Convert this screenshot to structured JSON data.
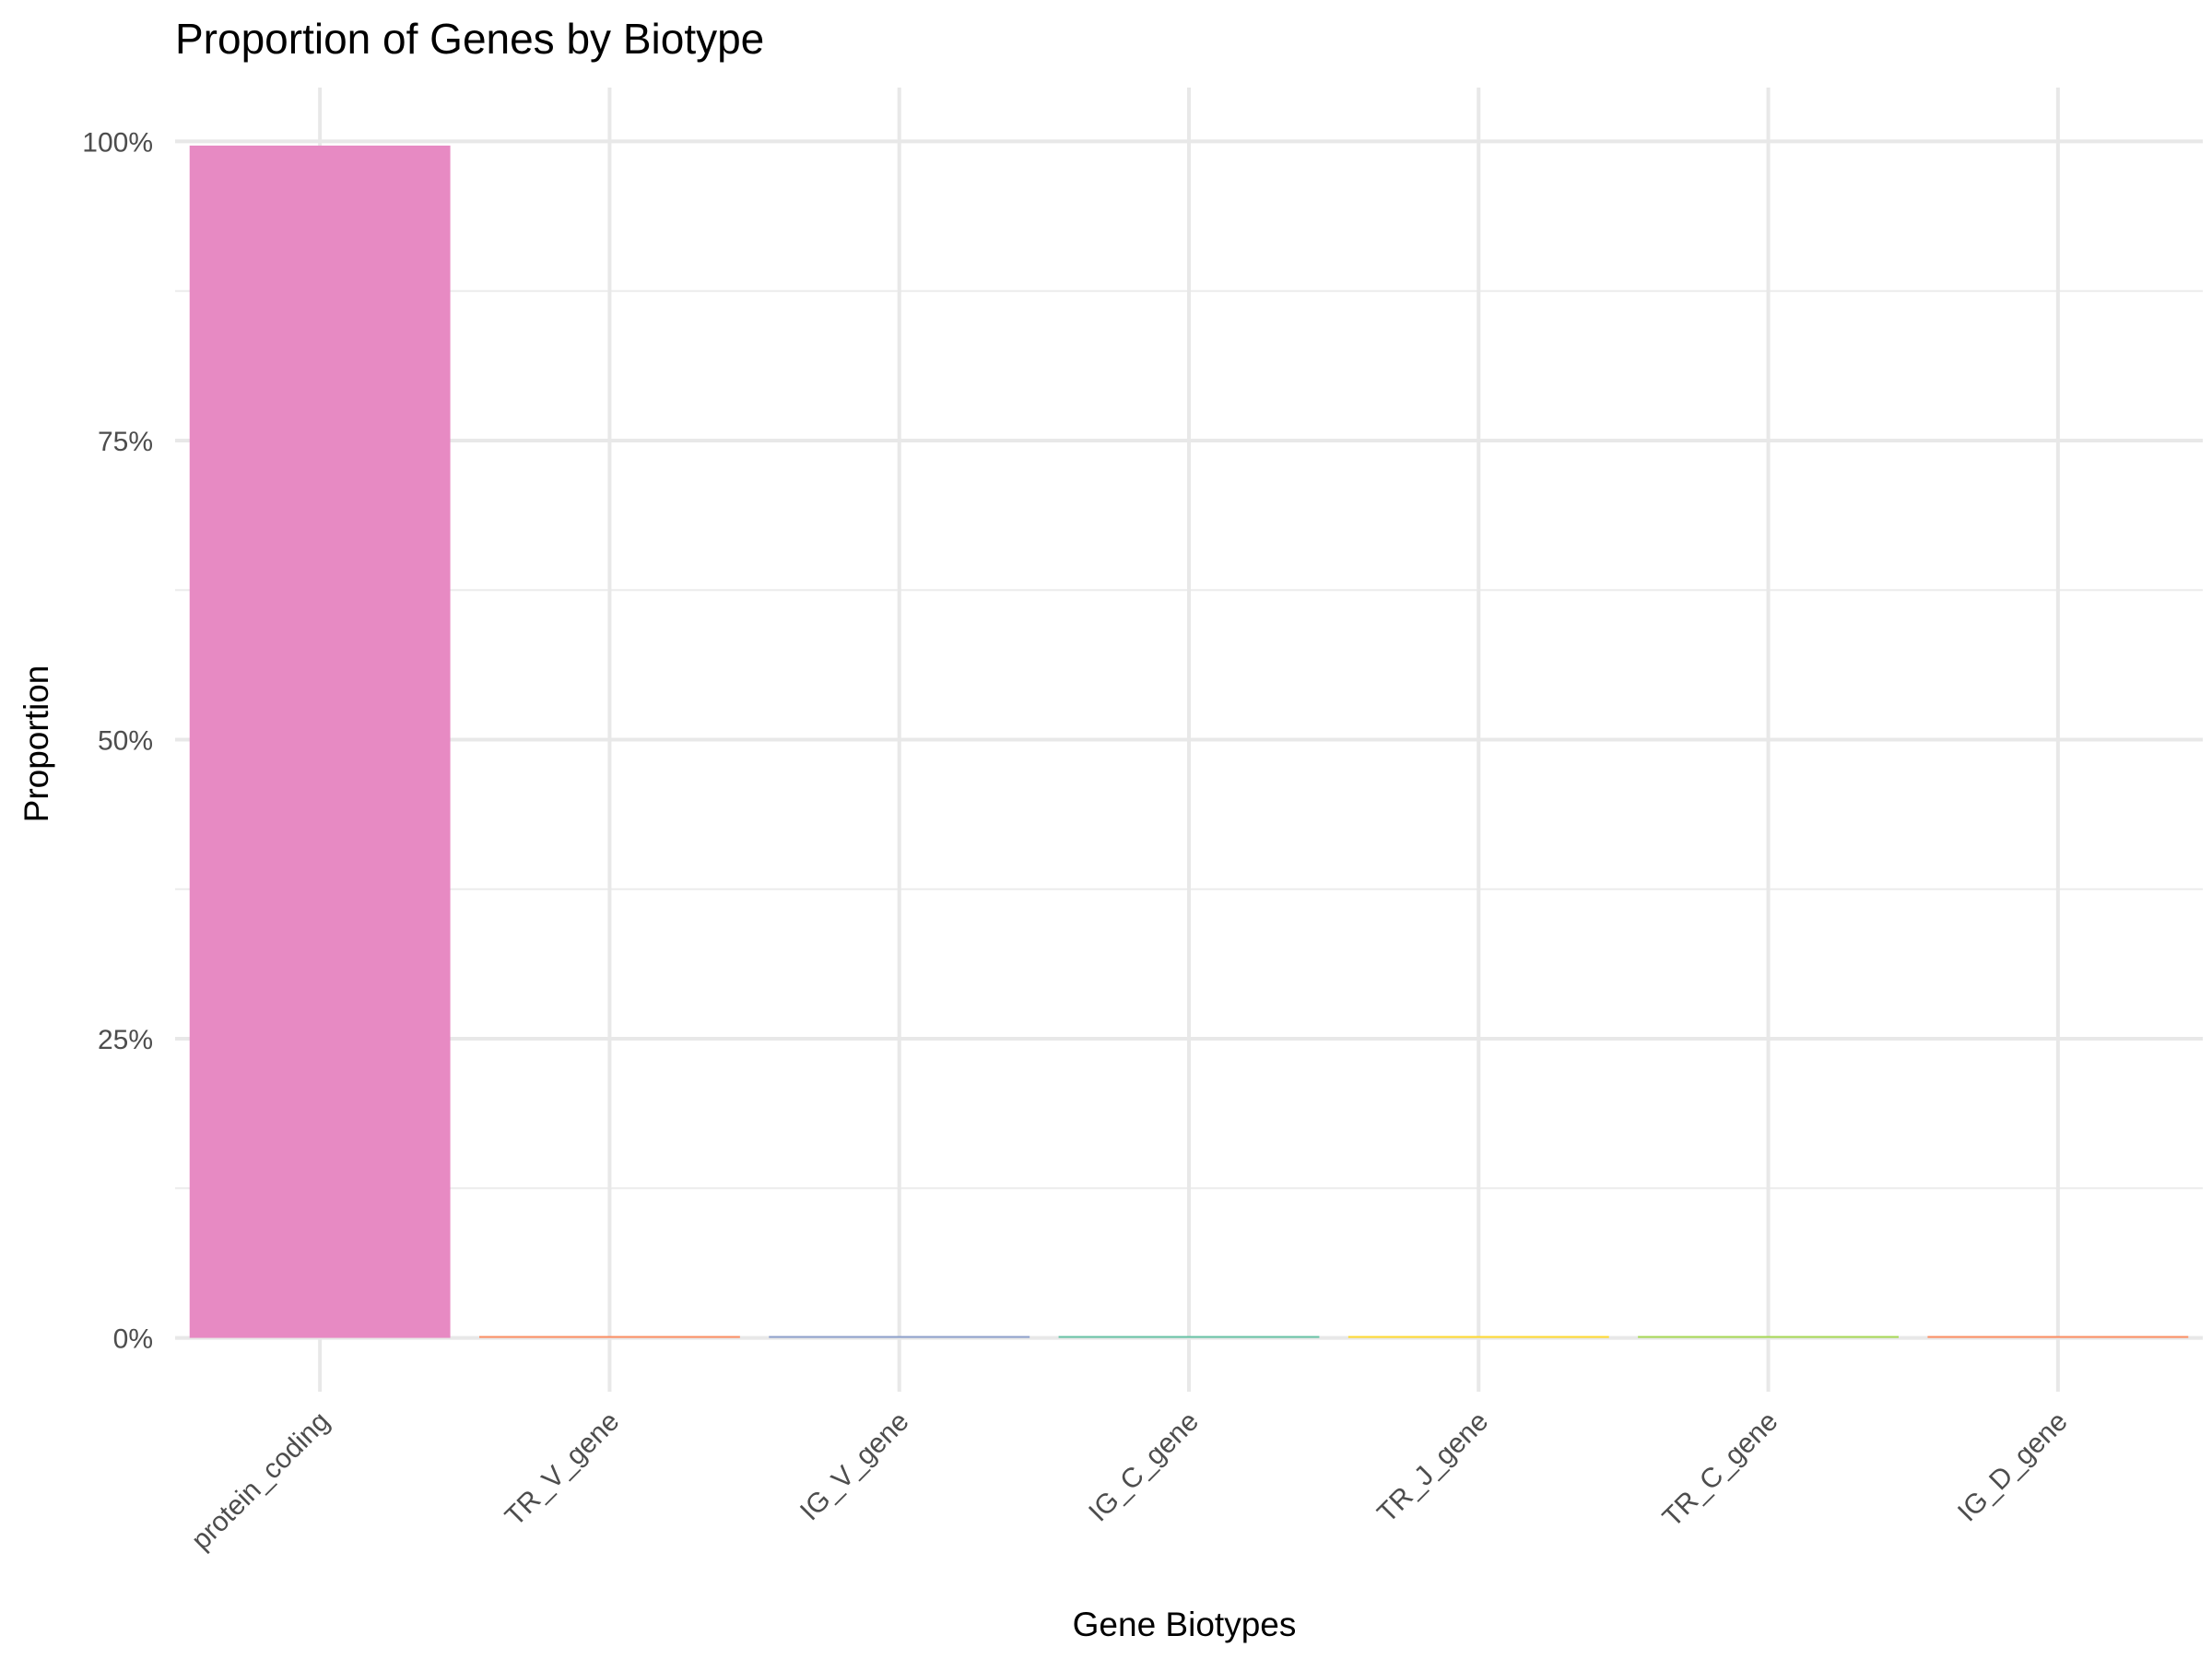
{
  "chart_data": {
    "type": "bar",
    "title": "Proportion of Genes by Biotype",
    "xlabel": "Gene Biotypes",
    "ylabel": "Proportion",
    "categories": [
      "protein_coding",
      "TR_V_gene",
      "IG_V_gene",
      "IG_C_gene",
      "TR_J_gene",
      "TR_C_gene",
      "IG_D_gene"
    ],
    "values": [
      0.9965,
      0.0015,
      0.0008,
      0.0005,
      0.0004,
      0.0002,
      0.0001
    ],
    "colors": [
      "#E78AC3",
      "#FC8D62",
      "#8DA0CB",
      "#66C2A5",
      "#FFD92F",
      "#A6D854",
      "#FC8D62"
    ],
    "ylim": [
      -0.045,
      1.045
    ],
    "yticks": [
      0,
      0.25,
      0.5,
      0.75,
      1.0
    ],
    "ytick_labels": [
      "0%",
      "25%",
      "50%",
      "75%",
      "100%"
    ],
    "grid": true,
    "legend": "none"
  }
}
